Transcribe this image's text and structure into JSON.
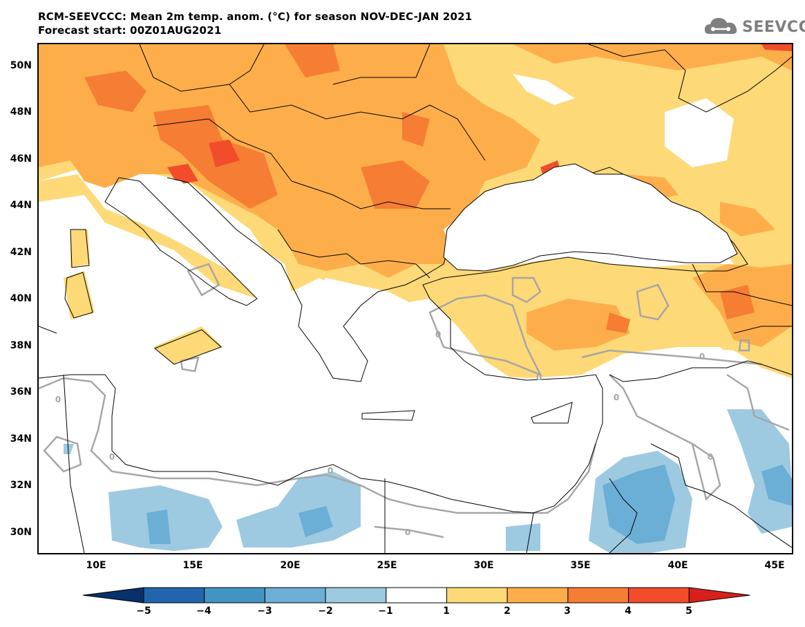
{
  "title": {
    "line1": "RCM-SEEVCCC: Mean 2m temp. anom. (°C) for season NOV-DEC-JAN 2021",
    "line2": "Forecast start: 00Z01AUG2021"
  },
  "logo": {
    "text": "SEEVCCC",
    "icon": "cloud-icon"
  },
  "axes": {
    "lat_labels": [
      "50N",
      "48N",
      "46N",
      "44N",
      "42N",
      "40N",
      "38N",
      "36N",
      "34N",
      "32N",
      "30N"
    ],
    "lon_labels": [
      "10E",
      "15E",
      "20E",
      "25E",
      "30E",
      "35E",
      "40E",
      "45E"
    ]
  },
  "contour_labels": [
    "0",
    "0",
    "0",
    "0",
    "0",
    "0",
    "0",
    "0",
    "0"
  ],
  "colorbar": {
    "labels": [
      "−5",
      "−4",
      "−3",
      "−2",
      "−1",
      "1",
      "2",
      "3",
      "4",
      "5"
    ],
    "colors": [
      "#08306b",
      "#2166ac",
      "#4393c3",
      "#6baed6",
      "#9ecae1",
      "#ffffff",
      "#fdd978",
      "#fdae4b",
      "#f67d34",
      "#f14d2b",
      "#d7201a"
    ]
  },
  "colors": {
    "anom_1_2": "#fdd978",
    "anom_2_3": "#fdae4b",
    "anom_3_4": "#f67d34",
    "anom_4_5": "#f14d2b",
    "anom_m1_m2": "#9ecae1",
    "anom_m2_m3": "#6baed6",
    "contour": "#a6a6a6",
    "border": "#000000"
  }
}
